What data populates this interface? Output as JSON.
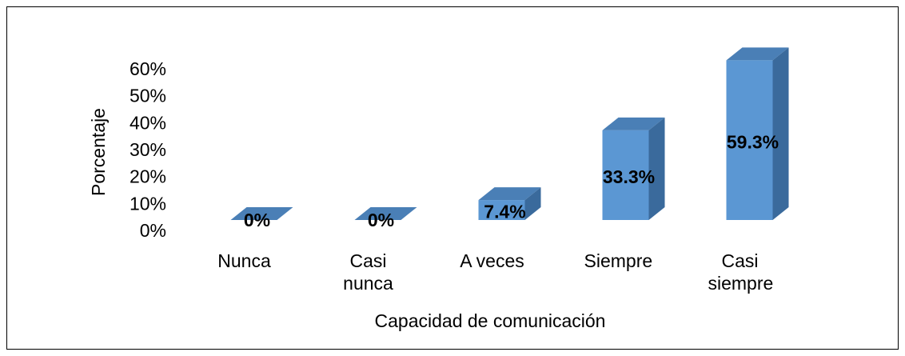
{
  "chart_data": {
    "type": "bar3d",
    "xlabel": "Capacidad de comunicación",
    "ylabel": "Porcentaje",
    "categories": [
      "Nunca",
      "Casi nunca",
      "A veces",
      "Siempre",
      "Casi siempre"
    ],
    "values": [
      0,
      0,
      7.4,
      33.3,
      59.3
    ],
    "value_labels": [
      "0%",
      "0%",
      "7.4%",
      "33.3%",
      "59.3%"
    ],
    "color": "#5b97d3",
    "ylim": [
      0,
      60
    ],
    "yticks": [
      {
        "value": 0,
        "label": "0%"
      },
      {
        "value": 10,
        "label": "10%"
      },
      {
        "value": 20,
        "label": "20%"
      },
      {
        "value": 30,
        "label": "30%"
      },
      {
        "value": 40,
        "label": "40%"
      },
      {
        "value": 50,
        "label": "50%"
      },
      {
        "value": 60,
        "label": "60%"
      }
    ]
  }
}
